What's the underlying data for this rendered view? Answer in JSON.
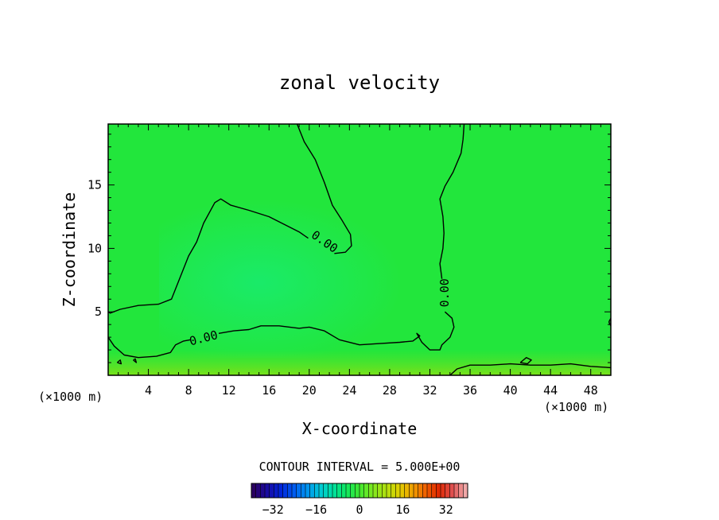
{
  "chart_data": {
    "type": "heatmap",
    "title": "zonal velocity",
    "xlabel": "X-coordinate",
    "ylabel": "Z-coordinate",
    "x_unit_left": "(×1000 m)",
    "x_unit_right": "(×1000 m)",
    "xlim": [
      0,
      50
    ],
    "ylim": [
      0,
      19.8
    ],
    "x_ticks": [
      4,
      8,
      12,
      16,
      20,
      24,
      28,
      32,
      36,
      40,
      44,
      48
    ],
    "y_ticks": [
      5,
      10,
      15
    ],
    "grid": false,
    "background_color": "#22e63c",
    "contour_label": "0.00",
    "contour_labels": [
      {
        "text": "0.00",
        "x": 21.5,
        "y": 10.5,
        "angle": 35
      },
      {
        "text": "0.00",
        "x": 9.5,
        "y": 2.9,
        "angle": -14
      },
      {
        "text": "0.00",
        "x": 33.5,
        "y": 6.5,
        "angle": -90
      }
    ],
    "contours": [
      {
        "level": 0,
        "points": [
          [
            18.8,
            19.8
          ],
          [
            19.5,
            18.4
          ],
          [
            20.6,
            17.0
          ],
          [
            21.5,
            15.2
          ],
          [
            22.3,
            13.4
          ],
          [
            23.2,
            12.3
          ],
          [
            24.1,
            11.1
          ],
          [
            24.2,
            10.2
          ],
          [
            23.6,
            9.7
          ],
          [
            22.5,
            9.6
          ]
        ]
      },
      {
        "level": 0,
        "points": [
          [
            19.9,
            10.8
          ],
          [
            19.0,
            11.3
          ],
          [
            16.0,
            12.5
          ],
          [
            14.0,
            13.0
          ],
          [
            12.2,
            13.4
          ],
          [
            11.2,
            13.9
          ],
          [
            10.6,
            13.6
          ],
          [
            9.5,
            12.0
          ],
          [
            8.8,
            10.5
          ],
          [
            8.0,
            9.4
          ],
          [
            7.2,
            7.8
          ],
          [
            6.3,
            6.0
          ],
          [
            5.0,
            5.6
          ],
          [
            3.0,
            5.5
          ],
          [
            1.2,
            5.2
          ],
          [
            0.2,
            4.9
          ],
          [
            0,
            5.0
          ]
        ]
      },
      {
        "level": 0,
        "points": [
          [
            0,
            3.0
          ],
          [
            0.6,
            2.3
          ],
          [
            1.6,
            1.6
          ],
          [
            3.0,
            1.4
          ],
          [
            4.8,
            1.5
          ],
          [
            6.2,
            1.8
          ],
          [
            6.7,
            2.4
          ],
          [
            7.5,
            2.7
          ],
          [
            8.2,
            2.8
          ]
        ]
      },
      {
        "level": 0,
        "points": [
          [
            11.0,
            3.3
          ],
          [
            12.5,
            3.5
          ],
          [
            14.0,
            3.6
          ],
          [
            15.2,
            3.9
          ],
          [
            17.0,
            3.9
          ],
          [
            19.0,
            3.7
          ],
          [
            20.0,
            3.8
          ],
          [
            21.5,
            3.5
          ],
          [
            23.0,
            2.8
          ],
          [
            25.0,
            2.4
          ],
          [
            27.0,
            2.5
          ],
          [
            29.0,
            2.6
          ],
          [
            30.3,
            2.7
          ],
          [
            31.0,
            3.1
          ],
          [
            30.7,
            3.3
          ],
          [
            31.2,
            2.6
          ],
          [
            32.0,
            2.0
          ],
          [
            33.0,
            2.0
          ],
          [
            33.2,
            2.4
          ],
          [
            34.0,
            3.0
          ],
          [
            34.4,
            3.8
          ],
          [
            34.2,
            4.5
          ],
          [
            33.5,
            5.0
          ]
        ]
      },
      {
        "level": 0,
        "points": [
          [
            33.2,
            7.6
          ],
          [
            33.0,
            8.8
          ],
          [
            33.3,
            10.0
          ],
          [
            33.4,
            11.2
          ],
          [
            33.3,
            12.5
          ],
          [
            33.0,
            13.9
          ],
          [
            33.5,
            14.9
          ],
          [
            34.3,
            16.0
          ],
          [
            35.1,
            17.5
          ],
          [
            35.3,
            18.6
          ],
          [
            35.4,
            19.8
          ]
        ]
      },
      {
        "level": 0,
        "points": [
          [
            34.0,
            0
          ],
          [
            34.7,
            0.5
          ],
          [
            36.0,
            0.8
          ],
          [
            38.0,
            0.8
          ],
          [
            40.0,
            0.9
          ],
          [
            42.0,
            0.8
          ],
          [
            44.0,
            0.8
          ],
          [
            46.0,
            0.9
          ],
          [
            48.0,
            0.7
          ],
          [
            50.0,
            0.6
          ]
        ]
      },
      {
        "level": 0,
        "points": [
          [
            41.0,
            1.0
          ],
          [
            41.6,
            1.4
          ],
          [
            42.1,
            1.2
          ],
          [
            41.7,
            0.9
          ],
          [
            41.0,
            1.0
          ]
        ]
      },
      {
        "level": 0,
        "points": [
          [
            0.9,
            1.0
          ],
          [
            1.2,
            1.2
          ],
          [
            1.3,
            0.9
          ],
          [
            0.9,
            1.0
          ]
        ]
      },
      {
        "level": 0,
        "points": [
          [
            2.5,
            1.2
          ],
          [
            2.7,
            1.3
          ],
          [
            2.8,
            1.0
          ],
          [
            2.5,
            1.2
          ]
        ]
      },
      {
        "level": 0,
        "points": [
          [
            49.8,
            4.2
          ],
          [
            50.0,
            4.5
          ],
          [
            50.0,
            3.9
          ],
          [
            49.8,
            4.2
          ]
        ]
      }
    ],
    "colorbar": {
      "caption": "CONTOUR INTERVAL = 5.000E+00",
      "ticks": [
        -32,
        -16,
        0,
        16,
        32
      ],
      "tick_labels": [
        "−32",
        "−16",
        "0",
        "16",
        "32"
      ],
      "range": [
        -40,
        40
      ],
      "colors": [
        "#2a0060",
        "#1a0aa0",
        "#0022d8",
        "#0058f0",
        "#0090f0",
        "#00c8d8",
        "#00e0a0",
        "#10e860",
        "#40e830",
        "#80e820",
        "#b0e010",
        "#e0d000",
        "#f0a000",
        "#f06000",
        "#e02800",
        "#e05050",
        "#f0a8a8"
      ]
    }
  }
}
